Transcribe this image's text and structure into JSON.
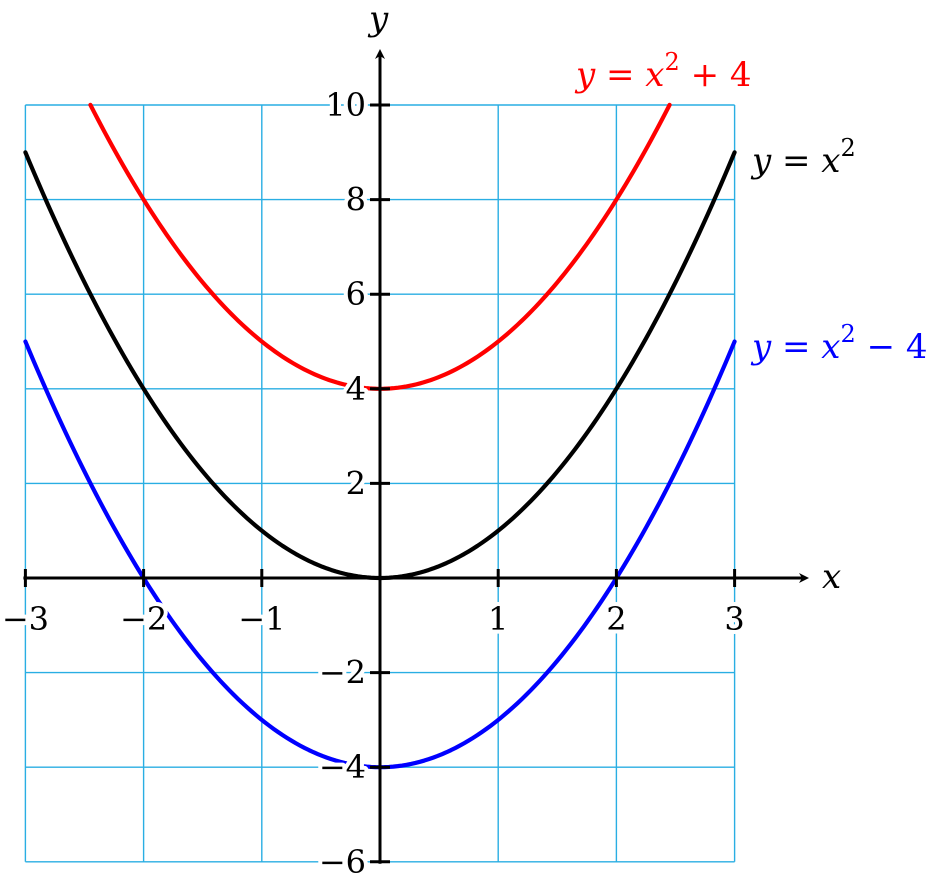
{
  "chart_data": {
    "type": "line",
    "title": "",
    "xlabel": "x",
    "ylabel": "y",
    "xlim": [
      -3,
      3
    ],
    "ylim": [
      -6,
      10
    ],
    "x_ticks": [
      -3,
      -2,
      -1,
      1,
      2,
      3
    ],
    "y_ticks": [
      -6,
      -4,
      -2,
      2,
      4,
      6,
      8,
      10
    ],
    "grid": true,
    "grid_color": "#29aee3",
    "series": [
      {
        "name": "y = x² + 4",
        "label_base": "y = x",
        "label_exp": "2",
        "label_tail": " + 4",
        "color": "#ff0000",
        "formula": "x^2 + 4",
        "x_range": [
          -2.45,
          2.45
        ],
        "x": [
          -2.45,
          -2,
          -1.5,
          -1,
          -0.5,
          0,
          0.5,
          1,
          1.5,
          2,
          2.45
        ],
        "y": [
          10.0,
          8,
          6.25,
          5,
          4.25,
          4,
          4.25,
          5,
          6.25,
          8,
          10.0
        ]
      },
      {
        "name": "y = x²",
        "label_base": "y = x",
        "label_exp": "2",
        "label_tail": "",
        "color": "#000000",
        "formula": "x^2",
        "x_range": [
          -3,
          3
        ],
        "x": [
          -3,
          -2,
          -1,
          0,
          1,
          2,
          3
        ],
        "y": [
          9,
          4,
          1,
          0,
          1,
          4,
          9
        ]
      },
      {
        "name": "y = x² − 4",
        "label_base": "y = x",
        "label_exp": "2",
        "label_tail": " − 4",
        "color": "#0000ff",
        "formula": "x^2 - 4",
        "x_range": [
          -3,
          3
        ],
        "x": [
          -3,
          -2,
          -1,
          0,
          1,
          2,
          3
        ],
        "y": [
          5,
          0,
          -3,
          -4,
          -3,
          0,
          5
        ]
      }
    ]
  }
}
